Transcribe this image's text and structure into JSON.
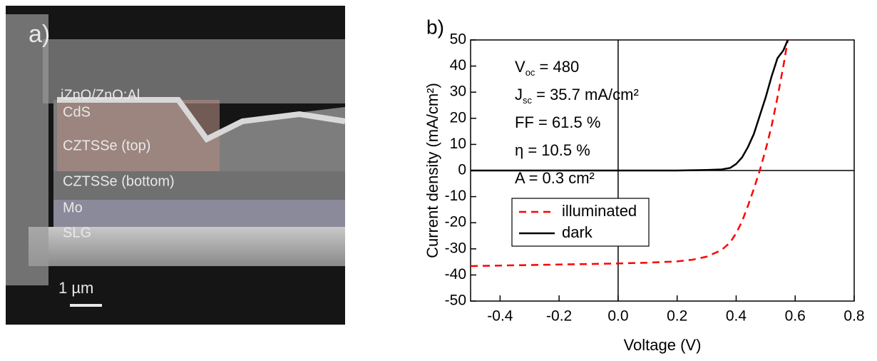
{
  "sem_image": {
    "panel_label": "a)",
    "layer_labels": [
      "iZnO/ZnO:Al",
      "CdS",
      "CZTSSe (top)",
      "CZTSSe (bottom)",
      "Mo",
      "SLG"
    ],
    "scale_bar": "1 µm"
  },
  "chart_data": {
    "type": "line",
    "panel_label": "b)",
    "x_label": "Voltage (V)",
    "y_label": "Current density (mA/cm²)",
    "x": [
      -0.5,
      -0.4,
      -0.3,
      -0.2,
      -0.1,
      0,
      0.1,
      0.2,
      0.25,
      0.3,
      0.35,
      0.38,
      0.4,
      0.42,
      0.44,
      0.46,
      0.48,
      0.5,
      0.52,
      0.54,
      0.56,
      0.575
    ],
    "series": [
      {
        "name": "illuminated",
        "color": "#ff0000",
        "dash": true,
        "values": [
          -36.6,
          -36.4,
          -36.2,
          -36.0,
          -35.8,
          -35.6,
          -35.3,
          -34.8,
          -34.2,
          -33.0,
          -30.5,
          -27.5,
          -24,
          -19.5,
          -13.5,
          -7,
          0,
          8,
          17,
          28,
          40,
          50
        ]
      },
      {
        "name": "dark",
        "color": "#000000",
        "dash": false,
        "values": [
          0,
          0,
          0,
          0,
          0,
          0,
          0,
          0,
          0.1,
          0.2,
          0.4,
          1,
          2.5,
          5,
          9,
          14,
          21,
          28,
          36,
          43,
          46,
          50
        ]
      }
    ],
    "annotations": [
      {
        "symbol": "V",
        "subscript": "oc",
        "text": " = 480"
      },
      {
        "symbol": "J",
        "subscript": "sc",
        "text": " = 35.7 mA/cm²"
      },
      {
        "text": "FF = 61.5 %"
      },
      {
        "text": "η = 10.5 %"
      },
      {
        "text": "A = 0.3 cm²"
      }
    ],
    "xlim": [
      -0.5,
      0.8
    ],
    "ylim": [
      -50,
      50
    ],
    "xticks": [
      -0.4,
      -0.2,
      {
        "value": 0,
        "label": "0.0"
      },
      0.2,
      0.4,
      0.6,
      0.8
    ],
    "yticks": [
      -50,
      -40,
      -30,
      -20,
      -10,
      0,
      10,
      20,
      30,
      40,
      50
    ],
    "zero_lines": true,
    "legend": "center left"
  }
}
